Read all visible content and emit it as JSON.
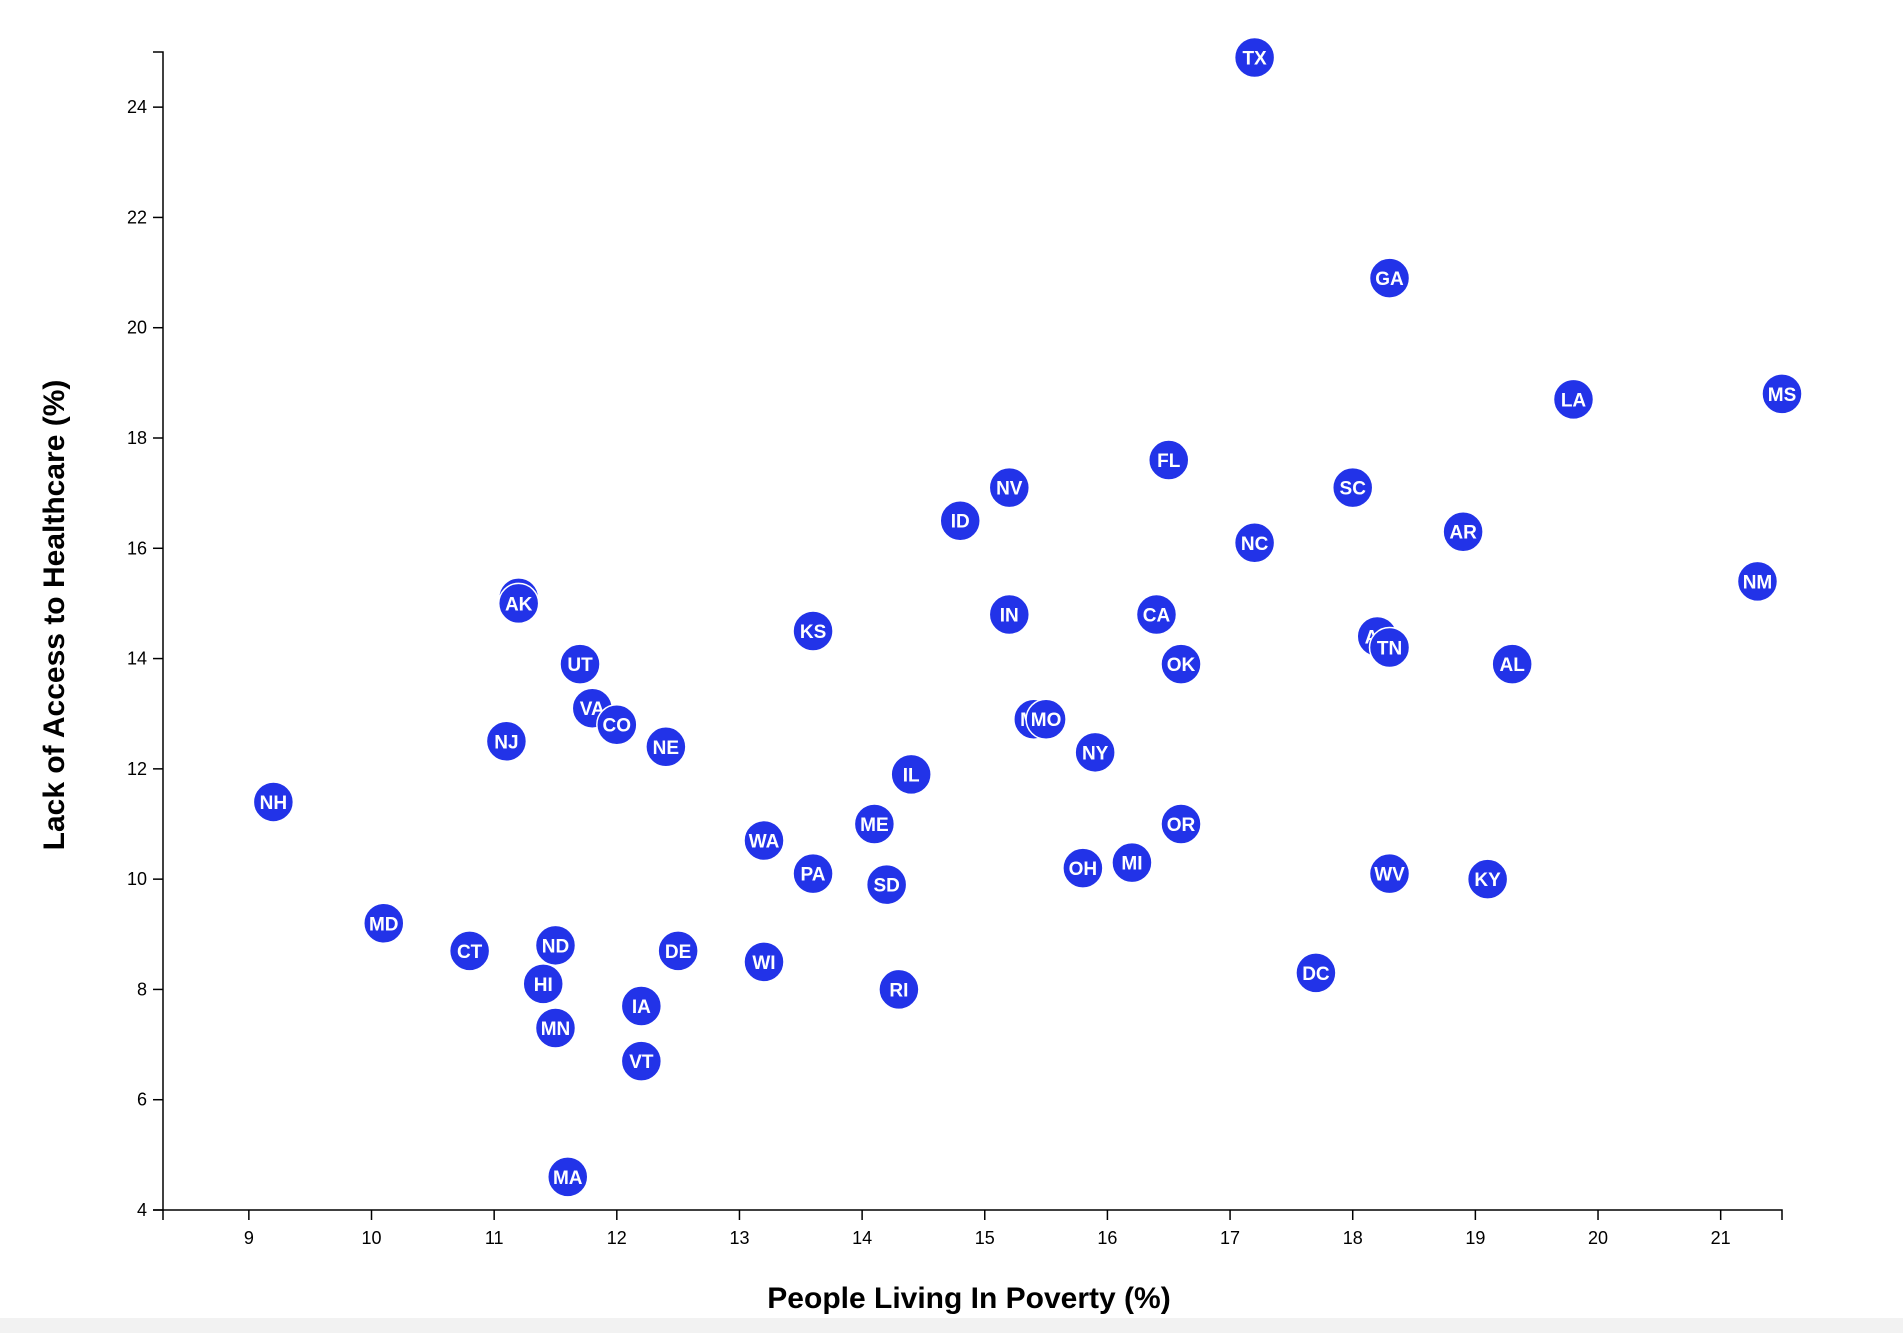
{
  "chart_data": {
    "type": "scatter",
    "title": "",
    "xlabel": "People Living In Poverty (%)",
    "ylabel": "Lack of Access to Healthcare (%)",
    "xlim": [
      8.3,
      21.5
    ],
    "ylim": [
      4,
      25
    ],
    "x_ticks": [
      9,
      10,
      11,
      12,
      13,
      14,
      15,
      16,
      17,
      18,
      19,
      20,
      21
    ],
    "y_ticks": [
      4,
      6,
      8,
      10,
      12,
      14,
      16,
      18,
      20,
      22,
      24
    ],
    "grid": false,
    "marker_color": "#2233e8",
    "label_color": "#ffffff",
    "points": [
      {
        "label": "TX",
        "x": 17.2,
        "y": 24.9
      },
      {
        "label": "GA",
        "x": 18.3,
        "y": 20.9
      },
      {
        "label": "LA",
        "x": 19.8,
        "y": 18.7
      },
      {
        "label": "MS",
        "x": 21.5,
        "y": 18.8
      },
      {
        "label": "FL",
        "x": 16.5,
        "y": 17.6
      },
      {
        "label": "NV",
        "x": 15.2,
        "y": 17.1
      },
      {
        "label": "SC",
        "x": 18.0,
        "y": 17.1
      },
      {
        "label": "ID",
        "x": 14.8,
        "y": 16.5
      },
      {
        "label": "AR",
        "x": 18.9,
        "y": 16.3
      },
      {
        "label": "NC",
        "x": 17.2,
        "y": 16.1
      },
      {
        "label": "NM",
        "x": 21.3,
        "y": 15.4
      },
      {
        "label": "WY",
        "x": 11.2,
        "y": 15.1
      },
      {
        "label": "AK",
        "x": 11.2,
        "y": 15.0
      },
      {
        "label": "IN",
        "x": 15.2,
        "y": 14.8
      },
      {
        "label": "CA",
        "x": 16.4,
        "y": 14.8
      },
      {
        "label": "KS",
        "x": 13.6,
        "y": 14.5
      },
      {
        "label": "AZ",
        "x": 18.2,
        "y": 14.4
      },
      {
        "label": "TN",
        "x": 18.3,
        "y": 14.2
      },
      {
        "label": "UT",
        "x": 11.7,
        "y": 13.9
      },
      {
        "label": "OK",
        "x": 16.6,
        "y": 13.9
      },
      {
        "label": "AL",
        "x": 19.3,
        "y": 13.9
      },
      {
        "label": "VA",
        "x": 11.8,
        "y": 13.1
      },
      {
        "label": "MT",
        "x": 15.4,
        "y": 12.9
      },
      {
        "label": "MO",
        "x": 15.5,
        "y": 12.9
      },
      {
        "label": "CO",
        "x": 12.0,
        "y": 12.8
      },
      {
        "label": "NJ",
        "x": 11.1,
        "y": 12.5
      },
      {
        "label": "NE",
        "x": 12.4,
        "y": 12.4
      },
      {
        "label": "NY",
        "x": 15.9,
        "y": 12.3
      },
      {
        "label": "IL",
        "x": 14.4,
        "y": 11.9
      },
      {
        "label": "NH",
        "x": 9.2,
        "y": 11.4
      },
      {
        "label": "ME",
        "x": 14.1,
        "y": 11.0
      },
      {
        "label": "OR",
        "x": 16.6,
        "y": 11.0
      },
      {
        "label": "WA",
        "x": 13.2,
        "y": 10.7
      },
      {
        "label": "MI",
        "x": 16.2,
        "y": 10.3
      },
      {
        "label": "OH",
        "x": 15.8,
        "y": 10.2
      },
      {
        "label": "PA",
        "x": 13.6,
        "y": 10.1
      },
      {
        "label": "WV",
        "x": 18.3,
        "y": 10.1
      },
      {
        "label": "KY",
        "x": 19.1,
        "y": 10.0
      },
      {
        "label": "SD",
        "x": 14.2,
        "y": 9.9
      },
      {
        "label": "MD",
        "x": 10.1,
        "y": 9.2
      },
      {
        "label": "ND",
        "x": 11.5,
        "y": 8.8
      },
      {
        "label": "CT",
        "x": 10.8,
        "y": 8.7
      },
      {
        "label": "DE",
        "x": 12.5,
        "y": 8.7
      },
      {
        "label": "WI",
        "x": 13.2,
        "y": 8.5
      },
      {
        "label": "DC",
        "x": 17.7,
        "y": 8.3
      },
      {
        "label": "HI",
        "x": 11.4,
        "y": 8.1
      },
      {
        "label": "RI",
        "x": 14.3,
        "y": 8.0
      },
      {
        "label": "IA",
        "x": 12.2,
        "y": 7.7
      },
      {
        "label": "MN",
        "x": 11.5,
        "y": 7.3
      },
      {
        "label": "VT",
        "x": 12.2,
        "y": 6.7
      },
      {
        "label": "MA",
        "x": 11.6,
        "y": 4.6
      }
    ]
  }
}
